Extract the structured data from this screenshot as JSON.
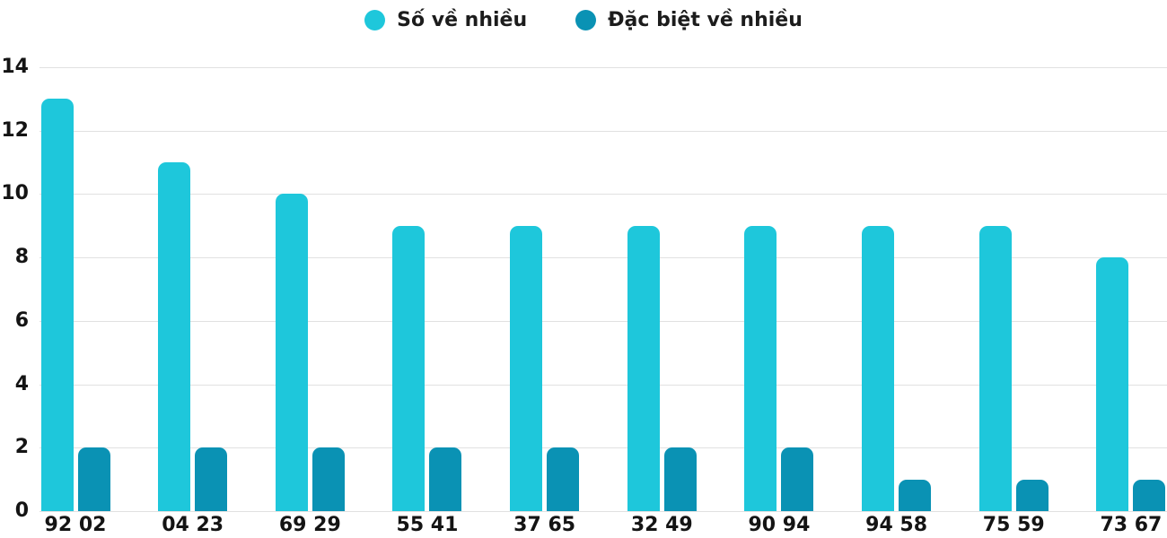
{
  "chart_data": {
    "type": "bar",
    "categories": [
      "92 02",
      "04 23",
      "69 29",
      "55 41",
      "37 65",
      "32 49",
      "90 94",
      "94 58",
      "75 59",
      "73 67"
    ],
    "series": [
      {
        "name": "Số về nhiều",
        "color": "#1ec7db",
        "values": [
          13,
          11,
          10,
          9,
          9,
          9,
          9,
          9,
          9,
          8
        ]
      },
      {
        "name": "Đặc biệt về nhiều",
        "color": "#0a92b4",
        "values": [
          2,
          2,
          2,
          2,
          2,
          2,
          2,
          1,
          1,
          1
        ]
      }
    ],
    "title": "",
    "xlabel": "",
    "ylabel": "",
    "ylim": [
      0,
      14
    ],
    "yticks": [
      0,
      2,
      4,
      6,
      8,
      10,
      12,
      14
    ],
    "grid": true,
    "legend_position": "top",
    "gridline_color": "#e1e1e1",
    "label_color": "#141414"
  }
}
